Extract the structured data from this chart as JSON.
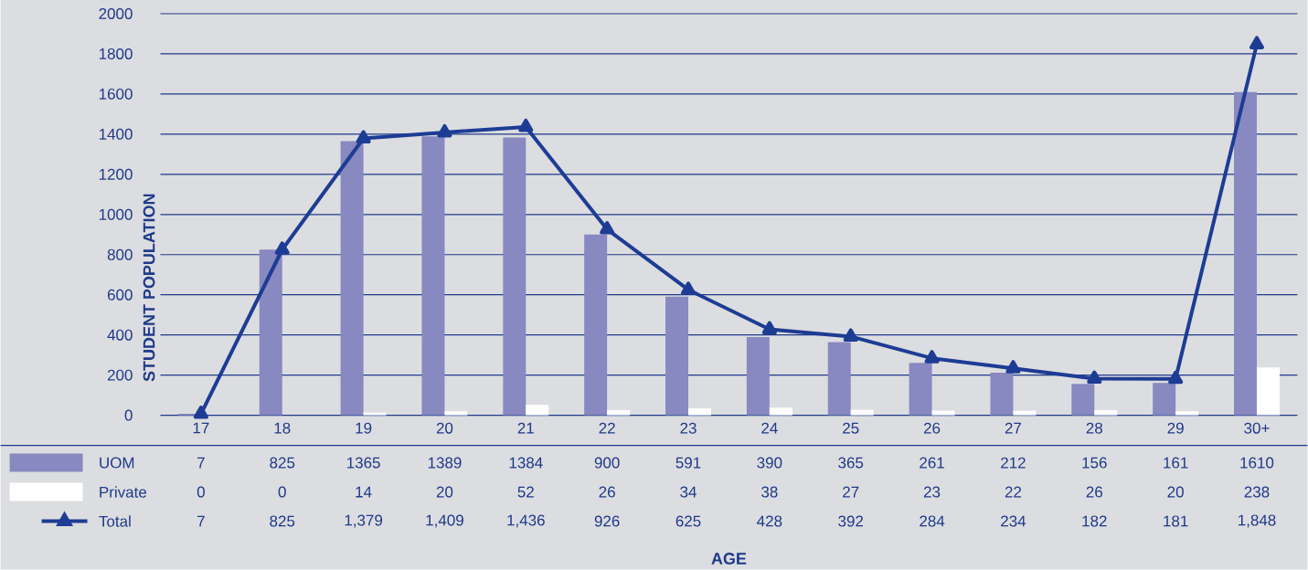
{
  "chart_data": {
    "type": "bar",
    "annotations": [
      "AGE"
    ],
    "ylabel": "STUDENT POPULATION",
    "categories": [
      "17",
      "18",
      "19",
      "20",
      "21",
      "22",
      "23",
      "24",
      "25",
      "26",
      "27",
      "28",
      "29",
      "30+"
    ],
    "series": [
      {
        "name": "UOM",
        "color": "#8889c0",
        "values": [
          7,
          825,
          1365,
          1389,
          1384,
          900,
          591,
          390,
          365,
          261,
          212,
          156,
          161,
          1610
        ],
        "value_labels": [
          "7",
          "825",
          "1365",
          "1389",
          "1384",
          "900",
          "591",
          "390",
          "365",
          "261",
          "212",
          "156",
          "161",
          "1610"
        ]
      },
      {
        "name": "Private",
        "color": "#ffffff",
        "values": [
          0,
          0,
          14,
          20,
          52,
          26,
          34,
          38,
          27,
          23,
          22,
          26,
          20,
          238
        ],
        "value_labels": [
          "0",
          "0",
          "14",
          "20",
          "52",
          "26",
          "34",
          "38",
          "27",
          "23",
          "22",
          "26",
          "20",
          "238"
        ]
      },
      {
        "name": "Total",
        "type": "line",
        "color": "#1d3c94",
        "marker": "triangle",
        "values": [
          7,
          825,
          1379,
          1409,
          1436,
          926,
          625,
          428,
          392,
          284,
          234,
          182,
          181,
          1848
        ],
        "value_labels": [
          "7",
          "825",
          "1,379",
          "1,409",
          "1,436",
          "926",
          "625",
          "428",
          "392",
          "284",
          "234",
          "182",
          "181",
          "1,848"
        ]
      }
    ],
    "ylim": [
      0,
      2000
    ],
    "yticks": [
      0,
      200,
      400,
      600,
      800,
      1000,
      1200,
      1400,
      1600,
      1800,
      2000
    ],
    "grid": "y",
    "legend": "bottom left"
  }
}
